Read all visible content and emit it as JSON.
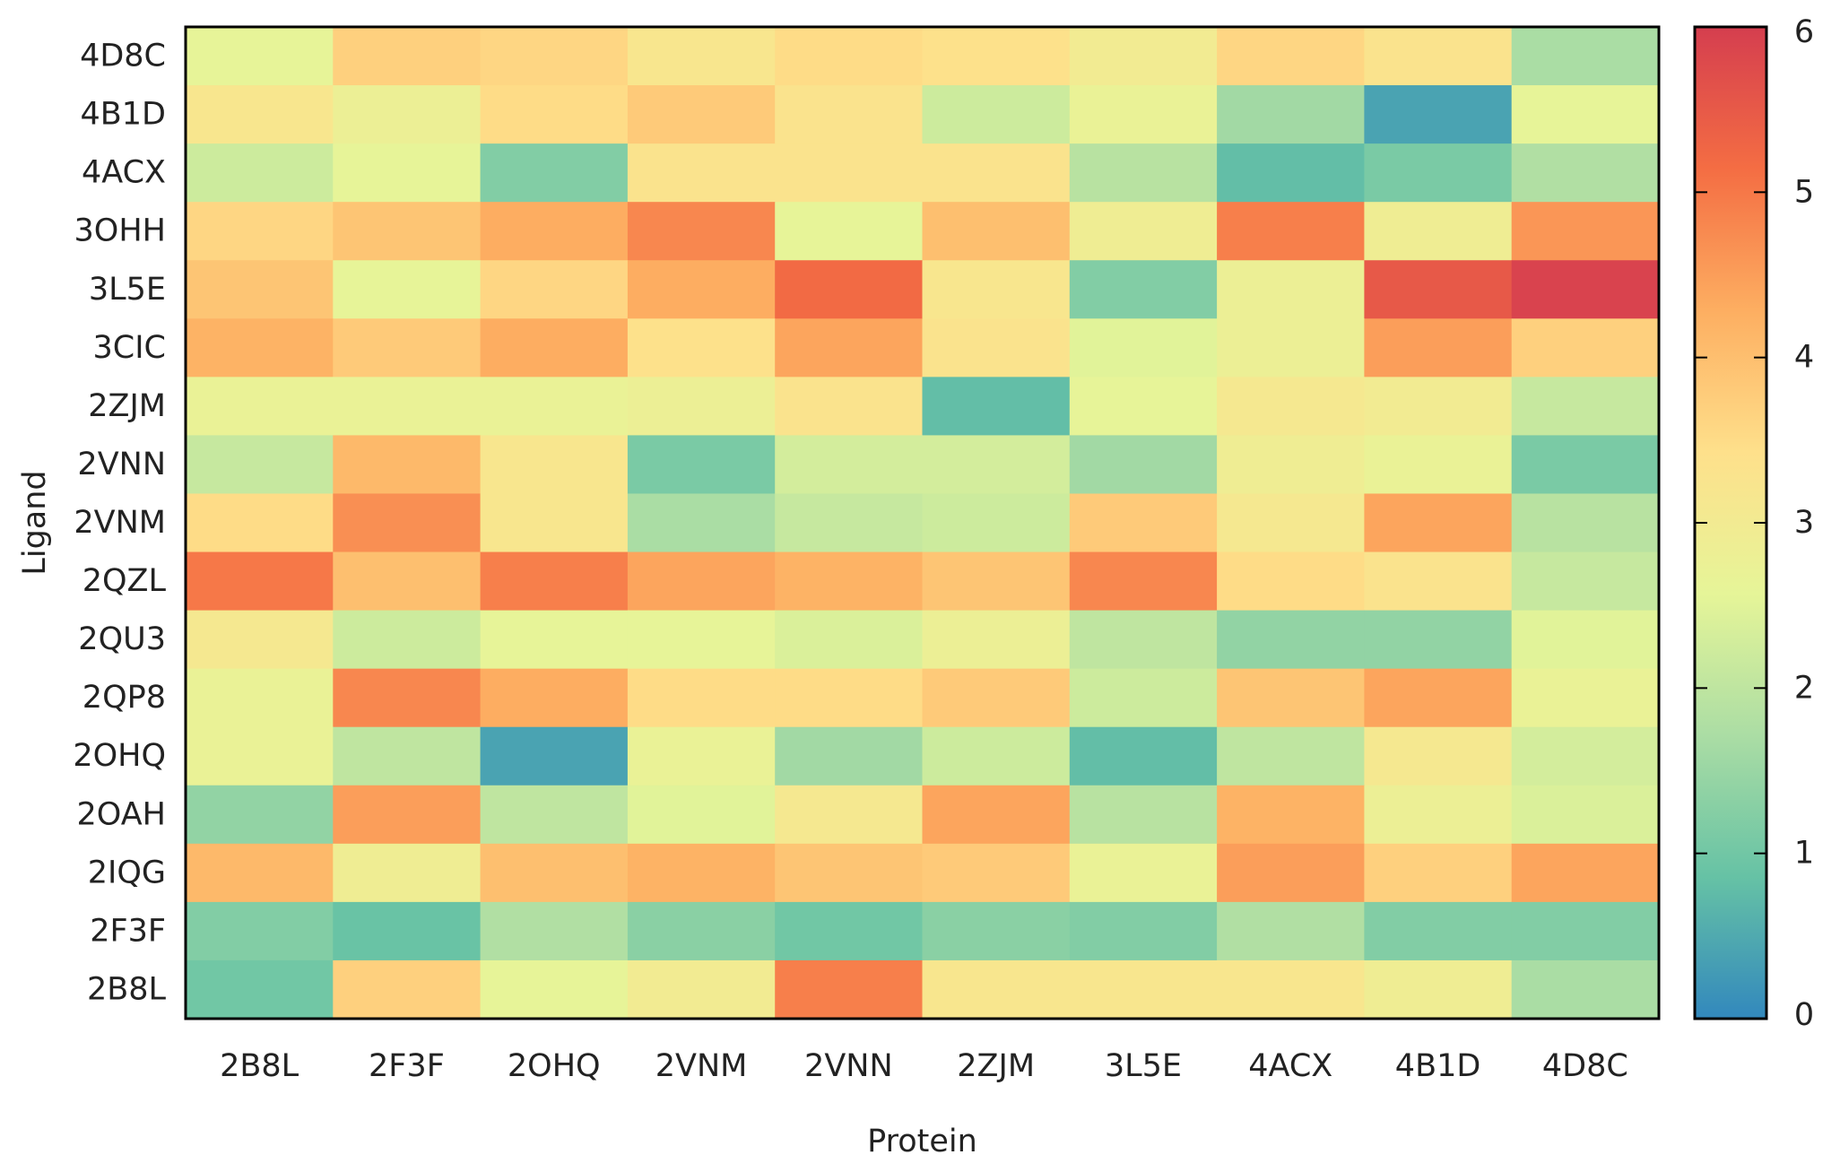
{
  "chart_data": {
    "type": "heatmap",
    "xlabel": "Protein",
    "ylabel": "Ligand",
    "x_categories": [
      "2B8L",
      "2F3F",
      "2OHQ",
      "2VNM",
      "2VNN",
      "2ZJM",
      "3L5E",
      "4ACX",
      "4B1D",
      "4D8C"
    ],
    "y_categories": [
      "4D8C",
      "4B1D",
      "4ACX",
      "3OHH",
      "3L5E",
      "3CIC",
      "2ZJM",
      "2VNN",
      "2VNM",
      "2QZL",
      "2QU3",
      "2QP8",
      "2OHQ",
      "2OAH",
      "2IQG",
      "2F3F",
      "2B8L"
    ],
    "values": [
      [
        2.6,
        3.7,
        3.6,
        3.2,
        3.5,
        3.4,
        3.0,
        3.6,
        3.3,
        1.7
      ],
      [
        3.2,
        2.8,
        3.5,
        3.8,
        3.3,
        2.2,
        2.7,
        1.6,
        0.4,
        2.6
      ],
      [
        2.2,
        2.6,
        1.2,
        3.3,
        3.3,
        3.3,
        1.9,
        0.8,
        1.1,
        1.8
      ],
      [
        3.6,
        3.9,
        4.3,
        4.8,
        2.6,
        4.0,
        2.9,
        4.9,
        2.9,
        4.6
      ],
      [
        3.9,
        2.6,
        3.6,
        4.3,
        5.2,
        3.2,
        1.2,
        2.8,
        5.5,
        5.9
      ],
      [
        4.2,
        3.8,
        4.3,
        3.4,
        4.4,
        3.3,
        2.5,
        2.8,
        4.5,
        3.7
      ],
      [
        2.7,
        2.7,
        2.7,
        2.8,
        3.3,
        0.8,
        2.6,
        3.1,
        3.0,
        2.1
      ],
      [
        2.1,
        4.1,
        3.2,
        1.1,
        2.3,
        2.3,
        1.6,
        2.9,
        2.7,
        1.1
      ],
      [
        3.5,
        4.7,
        3.2,
        1.7,
        2.1,
        2.2,
        3.8,
        3.1,
        4.4,
        1.9
      ],
      [
        5.0,
        4.0,
        4.9,
        4.4,
        4.2,
        3.9,
        4.8,
        3.5,
        3.3,
        2.1
      ],
      [
        3.1,
        2.2,
        2.6,
        2.6,
        2.4,
        2.8,
        2.0,
        1.4,
        1.4,
        2.5
      ],
      [
        2.7,
        4.8,
        4.3,
        3.5,
        3.5,
        3.8,
        2.2,
        3.9,
        4.4,
        2.7
      ],
      [
        2.7,
        2.0,
        0.4,
        2.7,
        1.6,
        2.2,
        0.8,
        2.0,
        3.1,
        2.3
      ],
      [
        1.4,
        4.5,
        2.0,
        2.5,
        3.1,
        4.4,
        1.9,
        4.2,
        2.8,
        2.4
      ],
      [
        4.1,
        2.9,
        4.0,
        4.2,
        3.9,
        3.8,
        2.7,
        4.5,
        3.7,
        4.4
      ],
      [
        1.2,
        0.9,
        1.8,
        1.3,
        1.0,
        1.3,
        1.2,
        1.8,
        1.2,
        1.2
      ],
      [
        1.0,
        3.7,
        2.6,
        3.0,
        4.9,
        3.2,
        3.2,
        3.2,
        2.9,
        1.7
      ]
    ],
    "colorbar": {
      "min": 0,
      "max": 6,
      "ticks": [
        "0",
        "1",
        "2",
        "3",
        "4",
        "5",
        "6"
      ],
      "colormap": [
        "#3288bd",
        "#66c2a5",
        "#abdda4",
        "#e6f598",
        "#fee08b",
        "#fdae61",
        "#f46d43",
        "#d53e4f"
      ]
    }
  }
}
